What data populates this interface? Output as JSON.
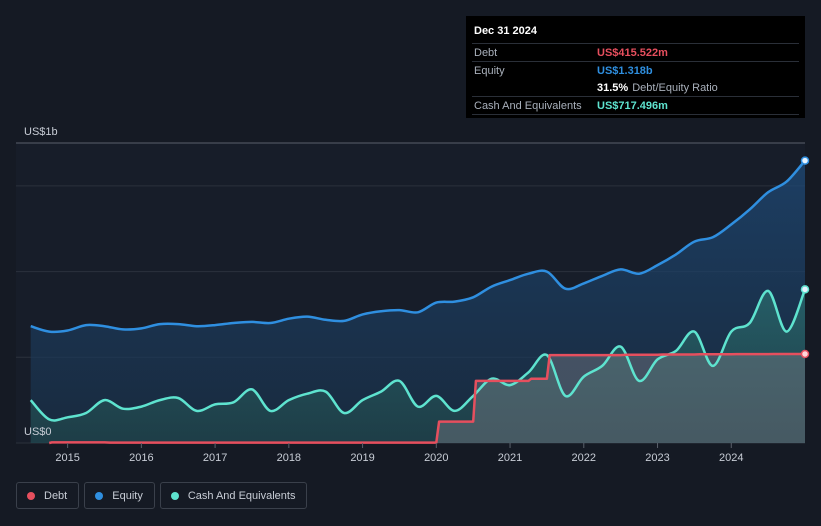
{
  "tooltip": {
    "date": "Dec 31 2024",
    "debt_label": "Debt",
    "debt_value": "US$415.522m",
    "equity_label": "Equity",
    "equity_value": "US$1.318b",
    "ratio_value": "31.5%",
    "ratio_label": "Debt/Equity Ratio",
    "cash_label": "Cash And Equivalents",
    "cash_value": "US$717.496m"
  },
  "legend": {
    "debt": "Debt",
    "equity": "Equity",
    "cash": "Cash And Equivalents"
  },
  "colors": {
    "debt": "#e64f5e",
    "equity": "#2f8fe0",
    "cash": "#5ee3cf",
    "background": "#151a24"
  },
  "chart_data": {
    "type": "area",
    "y_top_label": "US$1b",
    "y_bottom_label": "US$0",
    "x_ticks": [
      "2015",
      "2016",
      "2017",
      "2018",
      "2019",
      "2020",
      "2021",
      "2022",
      "2023",
      "2024"
    ],
    "ylim": [
      0,
      1.4
    ],
    "y_unit": "US$b",
    "series": [
      {
        "name": "Equity",
        "x": [
          2014.5,
          2014.75,
          2015.0,
          2015.25,
          2015.5,
          2015.75,
          2016.0,
          2016.25,
          2016.5,
          2016.75,
          2017.0,
          2017.25,
          2017.5,
          2017.75,
          2018.0,
          2018.25,
          2018.5,
          2018.75,
          2019.0,
          2019.25,
          2019.5,
          2019.75,
          2020.0,
          2020.25,
          2020.5,
          2020.75,
          2021.0,
          2021.25,
          2021.5,
          2021.75,
          2022.0,
          2022.25,
          2022.5,
          2022.75,
          2023.0,
          2023.25,
          2023.5,
          2023.75,
          2024.0,
          2024.25,
          2024.5,
          2024.75,
          2025.0
        ],
        "values": [
          0.545,
          0.52,
          0.525,
          0.55,
          0.545,
          0.53,
          0.535,
          0.555,
          0.555,
          0.545,
          0.55,
          0.56,
          0.565,
          0.56,
          0.58,
          0.59,
          0.575,
          0.57,
          0.6,
          0.615,
          0.62,
          0.61,
          0.655,
          0.66,
          0.68,
          0.73,
          0.76,
          0.79,
          0.8,
          0.72,
          0.745,
          0.78,
          0.81,
          0.79,
          0.83,
          0.88,
          0.94,
          0.96,
          1.02,
          1.09,
          1.17,
          1.22,
          1.318
        ]
      },
      {
        "name": "Cash And Equivalents",
        "x": [
          2014.5,
          2014.75,
          2015.0,
          2015.25,
          2015.5,
          2015.75,
          2016.0,
          2016.25,
          2016.5,
          2016.75,
          2017.0,
          2017.25,
          2017.5,
          2017.75,
          2018.0,
          2018.25,
          2018.5,
          2018.75,
          2019.0,
          2019.25,
          2019.5,
          2019.75,
          2020.0,
          2020.25,
          2020.5,
          2020.75,
          2021.0,
          2021.25,
          2021.5,
          2021.75,
          2022.0,
          2022.25,
          2022.5,
          2022.75,
          2023.0,
          2023.25,
          2023.5,
          2023.75,
          2024.0,
          2024.25,
          2024.5,
          2024.75,
          2025.0
        ],
        "values": [
          0.2,
          0.11,
          0.12,
          0.14,
          0.2,
          0.16,
          0.17,
          0.2,
          0.21,
          0.15,
          0.18,
          0.19,
          0.25,
          0.15,
          0.2,
          0.23,
          0.24,
          0.14,
          0.2,
          0.24,
          0.29,
          0.17,
          0.22,
          0.15,
          0.22,
          0.3,
          0.27,
          0.33,
          0.41,
          0.22,
          0.31,
          0.36,
          0.45,
          0.29,
          0.39,
          0.43,
          0.52,
          0.36,
          0.52,
          0.56,
          0.71,
          0.52,
          0.717
        ]
      },
      {
        "name": "Debt",
        "x": [
          2014.75,
          2015.0,
          2015.5,
          2016.0,
          2017.0,
          2018.0,
          2019.0,
          2019.75,
          2020.0,
          2020.25,
          2020.5,
          2020.75,
          2021.0,
          2021.25,
          2021.5,
          2021.75,
          2022.0,
          2022.5,
          2023.0,
          2023.5,
          2024.0,
          2024.5,
          2025.0
        ],
        "values": [
          0.0,
          0.003,
          0.003,
          0.002,
          0.002,
          0.002,
          0.002,
          0.002,
          0.002,
          0.1,
          0.1,
          0.29,
          0.29,
          0.29,
          0.3,
          0.41,
          0.41,
          0.41,
          0.412,
          0.413,
          0.414,
          0.415,
          0.4155
        ]
      }
    ]
  }
}
